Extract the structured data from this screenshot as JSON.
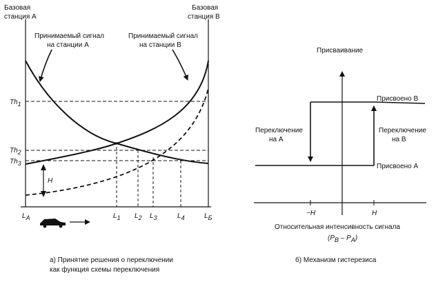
{
  "left_panel": {
    "station_a_line1": "Базовая",
    "station_a_line2": "станция А",
    "station_b_line1": "Базовая",
    "station_b_line2": "станция В",
    "signal_a_line1": "Принимаемый сигнал",
    "signal_a_line2": "на станции А",
    "signal_b_line1": "Принимаемый сигнал",
    "signal_b_line2": "на станции В",
    "th1": "Th",
    "th1_sub": "1",
    "th2": "Th",
    "th2_sub": "2",
    "th3": "Th",
    "th3_sub": "3",
    "h_label": "H",
    "la": "L",
    "la_sub": "A",
    "l1": "L",
    "l1_sub": "1",
    "l2": "L",
    "l2_sub": "2",
    "l3": "L",
    "l3_sub": "3",
    "l4": "L",
    "l4_sub": "4",
    "lb": "L",
    "lb_sub": "Б",
    "caption_line1": "а) Принятие решения о переключении",
    "caption_line2": "как функция схемы переключения"
  },
  "right_panel": {
    "y_axis_title": "Присваивание",
    "assigned_b": "Присвоено В",
    "assigned_a": "Присвоено А",
    "switch_a_line1": "Переключение",
    "switch_a_line2": "на А",
    "switch_b_line1": "Переключение",
    "switch_b_line2": "на В",
    "neg_h": "−H",
    "pos_h": "H",
    "x_axis_title": "Относительная интенсивность сигнала",
    "x_axis_formula": "(P",
    "x_axis_formula_b": "B",
    "x_axis_formula_mid": " – P",
    "x_axis_formula_a": "A",
    "x_axis_formula_end": ")",
    "caption": "б) Механизм гистерезиса"
  },
  "colors": {
    "ink": "#111111",
    "background": "#ffffff"
  }
}
